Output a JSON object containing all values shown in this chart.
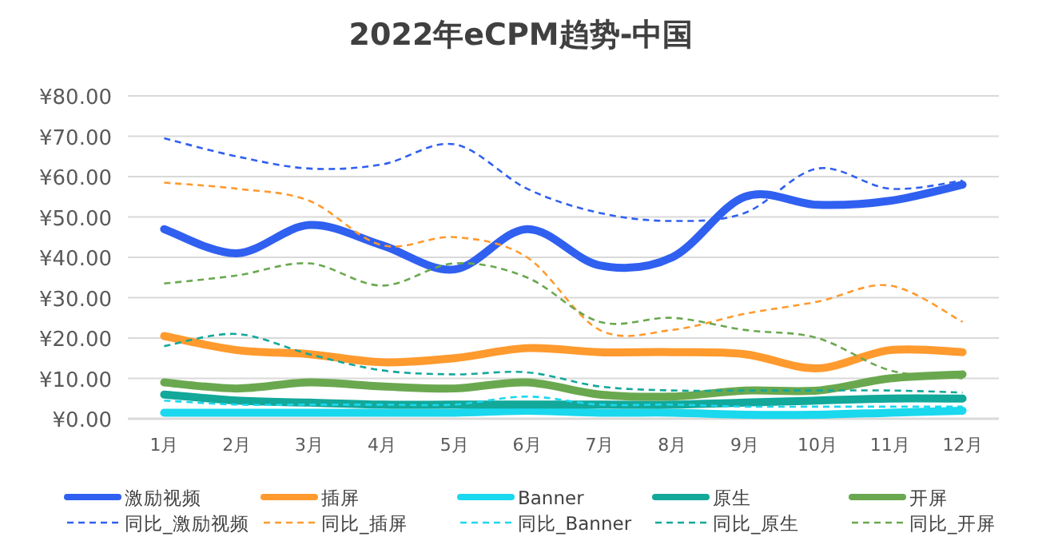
{
  "chart_data": {
    "type": "line",
    "title": "2022年eCPM趋势-中国",
    "categories": [
      "1月",
      "2月",
      "3月",
      "4月",
      "5月",
      "6月",
      "7月",
      "8月",
      "9月",
      "10月",
      "11月",
      "12月"
    ],
    "ylim": [
      0,
      80
    ],
    "yticks": [
      {
        "value": 0,
        "label": "¥0.00"
      },
      {
        "value": 10,
        "label": "¥10.00"
      },
      {
        "value": 20,
        "label": "¥20.00"
      },
      {
        "value": 30,
        "label": "¥30.00"
      },
      {
        "value": 40,
        "label": "¥40.00"
      },
      {
        "value": 50,
        "label": "¥50.00"
      },
      {
        "value": 60,
        "label": "¥60.00"
      },
      {
        "value": 70,
        "label": "¥70.00"
      },
      {
        "value": 80,
        "label": "¥80.00"
      }
    ],
    "grid": "y",
    "legend": "bottom",
    "marker": "none",
    "series": [
      {
        "name": "激励视频",
        "color": "#3060f0",
        "line_style": "solid",
        "values": [
          47,
          41,
          48,
          43,
          37,
          47,
          38,
          40,
          55,
          53,
          54,
          58
        ]
      },
      {
        "name": "插屏",
        "color": "#ff9a2e",
        "line_style": "solid",
        "values": [
          20.5,
          17,
          16,
          14,
          15,
          17.5,
          16.5,
          16.5,
          16,
          12.5,
          17,
          16.5
        ]
      },
      {
        "name": "Banner",
        "color": "#1ad8ee",
        "line_style": "solid",
        "values": [
          1.5,
          1.5,
          1.5,
          1.5,
          1.5,
          2,
          1.5,
          1.5,
          1,
          1,
          1.5,
          2
        ]
      },
      {
        "name": "原生",
        "color": "#12a89a",
        "line_style": "solid",
        "values": [
          6,
          4.5,
          4,
          3.5,
          3.5,
          3.5,
          3.5,
          3.5,
          4,
          4.5,
          5,
          5
        ]
      },
      {
        "name": "开屏",
        "color": "#6aa84f",
        "line_style": "solid",
        "values": [
          9,
          7.5,
          9,
          8,
          7.5,
          9,
          6,
          5.5,
          7,
          7,
          10,
          11
        ]
      },
      {
        "name": "同比_激励视频",
        "color": "#3060f0",
        "line_style": "dashed",
        "values": [
          69.5,
          65,
          62,
          63,
          68,
          57,
          51,
          49,
          51,
          62,
          57,
          59
        ]
      },
      {
        "name": "同比_插屏",
        "color": "#ff9a2e",
        "line_style": "dashed",
        "values": [
          58.5,
          57,
          54,
          43,
          45,
          40,
          22,
          22,
          26,
          29,
          33,
          24
        ]
      },
      {
        "name": "同比_Banner",
        "color": "#1ad8ee",
        "line_style": "dashed",
        "values": [
          4.5,
          3.5,
          3.5,
          3.5,
          3.5,
          5.5,
          3.5,
          3.5,
          3,
          3,
          3,
          3
        ]
      },
      {
        "name": "同比_原生",
        "color": "#12a89a",
        "line_style": "dashed",
        "values": [
          18,
          21,
          16,
          12,
          11,
          11.5,
          8,
          7,
          7,
          7,
          7,
          6.5
        ]
      },
      {
        "name": "同比_开屏",
        "color": "#6aa84f",
        "line_style": "dashed",
        "values": [
          33.5,
          35.5,
          38.5,
          33,
          38.5,
          35,
          24,
          25,
          22,
          20,
          12,
          10
        ]
      }
    ]
  }
}
